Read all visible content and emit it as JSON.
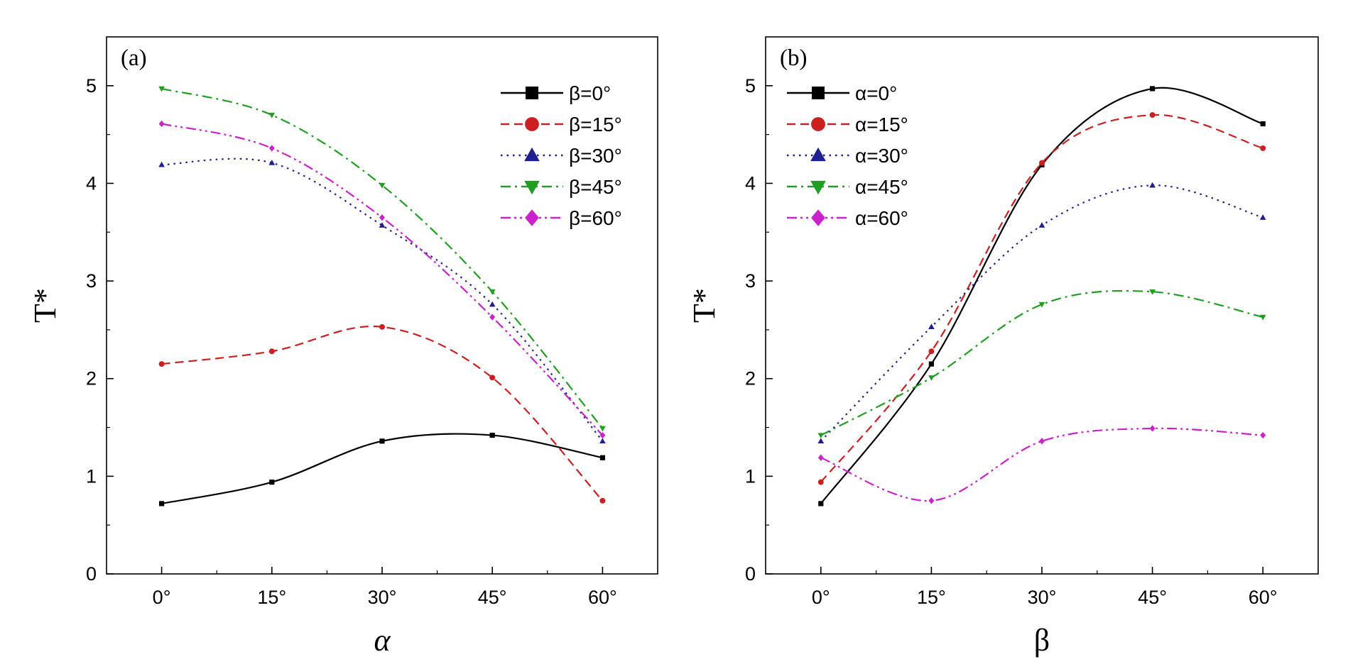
{
  "chart_data": [
    {
      "type": "line",
      "panel_label": "(a)",
      "xlabel": "α",
      "ylabel": "T*",
      "categories": [
        "0°",
        "15°",
        "30°",
        "45°",
        "60°"
      ],
      "x": [
        0,
        15,
        30,
        45,
        60
      ],
      "xlim": [
        -7.5,
        67.5
      ],
      "ylim": [
        0,
        5.5
      ],
      "yticks": [
        "0",
        "1",
        "2",
        "3",
        "4",
        "5"
      ],
      "legend_position": "top-right",
      "grid": false,
      "series": [
        {
          "name": "β=0°",
          "values": [
            0.72,
            0.94,
            1.36,
            1.42,
            1.19
          ],
          "color": "#000000",
          "dash": "solid",
          "marker": "square"
        },
        {
          "name": "β=15°",
          "values": [
            2.15,
            2.28,
            2.53,
            2.01,
            0.75
          ],
          "color": "#cc1f1f",
          "dash": "dash",
          "marker": "circle"
        },
        {
          "name": "β=30°",
          "values": [
            4.19,
            4.21,
            3.57,
            2.76,
            1.36
          ],
          "color": "#1f1f8f",
          "dash": "dot",
          "marker": "triangle-up"
        },
        {
          "name": "β=45°",
          "values": [
            4.97,
            4.7,
            3.98,
            2.89,
            1.49
          ],
          "color": "#1f9f1f",
          "dash": "dashdot",
          "marker": "triangle-down"
        },
        {
          "name": "β=60°",
          "values": [
            4.61,
            4.36,
            3.65,
            2.63,
            1.42
          ],
          "color": "#cc22cc",
          "dash": "dashdotdot",
          "marker": "diamond"
        }
      ]
    },
    {
      "type": "line",
      "panel_label": "(b)",
      "xlabel": "β",
      "ylabel": "T*",
      "categories": [
        "0°",
        "15°",
        "30°",
        "45°",
        "60°"
      ],
      "x": [
        0,
        15,
        30,
        45,
        60
      ],
      "xlim": [
        -7.5,
        67.5
      ],
      "ylim": [
        0,
        5.5
      ],
      "yticks": [
        "0",
        "1",
        "2",
        "3",
        "4",
        "5"
      ],
      "legend_position": "top-left",
      "grid": false,
      "series": [
        {
          "name": "α=0°",
          "values": [
            0.72,
            2.15,
            4.19,
            4.97,
            4.61
          ],
          "color": "#000000",
          "dash": "solid",
          "marker": "square"
        },
        {
          "name": "α=15°",
          "values": [
            0.94,
            2.28,
            4.21,
            4.7,
            4.36
          ],
          "color": "#cc1f1f",
          "dash": "dash",
          "marker": "circle"
        },
        {
          "name": "α=30°",
          "values": [
            1.36,
            2.53,
            3.57,
            3.98,
            3.65
          ],
          "color": "#1f1f8f",
          "dash": "dot",
          "marker": "triangle-up"
        },
        {
          "name": "α=45°",
          "values": [
            1.42,
            2.01,
            2.76,
            2.89,
            2.63
          ],
          "color": "#1f9f1f",
          "dash": "dashdot",
          "marker": "triangle-down"
        },
        {
          "name": "α=60°",
          "values": [
            1.19,
            0.75,
            1.36,
            1.49,
            1.42
          ],
          "color": "#cc22cc",
          "dash": "dashdotdot",
          "marker": "diamond"
        }
      ]
    }
  ]
}
